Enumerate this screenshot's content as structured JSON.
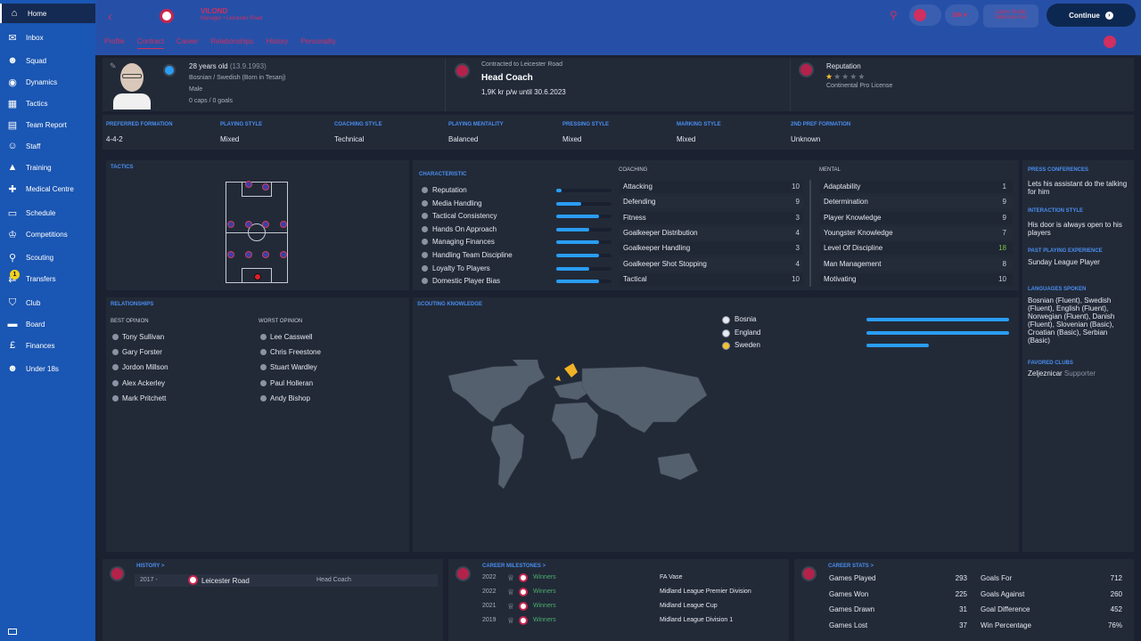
{
  "sidebar": {
    "items": [
      {
        "label": "Home",
        "icon": "home-icon",
        "glyph": "⌂",
        "active": true
      },
      {
        "label": "Inbox",
        "icon": "inbox-icon",
        "glyph": "✉"
      },
      {
        "label": "Squad",
        "icon": "squad-icon",
        "glyph": "☻"
      },
      {
        "label": "Dynamics",
        "icon": "dynamics-icon",
        "glyph": "◉"
      },
      {
        "label": "Tactics",
        "icon": "tactics-icon",
        "glyph": "▦"
      },
      {
        "label": "Team Report",
        "icon": "report-icon",
        "glyph": "▤"
      },
      {
        "label": "Staff",
        "icon": "staff-icon",
        "glyph": "☺"
      },
      {
        "label": "Training",
        "icon": "training-icon",
        "glyph": "▲"
      },
      {
        "label": "Medical Centre",
        "icon": "medical-icon",
        "glyph": "✚"
      },
      {
        "label": "Schedule",
        "icon": "schedule-icon",
        "glyph": "▭"
      },
      {
        "label": "Competitions",
        "icon": "trophy-icon",
        "glyph": "♔"
      },
      {
        "label": "Scouting",
        "icon": "scouting-icon",
        "glyph": "⚲"
      },
      {
        "label": "Transfers",
        "icon": "transfers-icon",
        "glyph": "⇄"
      },
      {
        "label": "Club",
        "icon": "club-icon",
        "glyph": "⛉"
      },
      {
        "label": "Board",
        "icon": "board-icon",
        "glyph": "▬"
      },
      {
        "label": "Finances",
        "icon": "finances-icon",
        "glyph": "£"
      },
      {
        "label": "Under 18s",
        "icon": "under18-icon",
        "glyph": "☻"
      }
    ],
    "transfers_badge": "1"
  },
  "top": {
    "name": "VILOND",
    "subtitle": "Manager • Leicester Road",
    "coins": "Lakov Studio\nWelcome Set",
    "continue": "Continue",
    "menu": [
      "Profile",
      "Contract",
      "Career",
      "Relationships",
      "History",
      "Personality"
    ]
  },
  "profile": {
    "age": "28 years old",
    "dob": "(13.9.1993)",
    "nationality": "Bosnian / Swedish (Born in Tesanj)",
    "gender": "Male",
    "caps": "0 caps / 0 goals"
  },
  "contract": {
    "label": "Contracted to Leicester Road",
    "role": "Head Coach",
    "wage": "1,9K kr p/w until 30.6.2023"
  },
  "reputation": {
    "label": "Reputation",
    "stars_filled": 1,
    "stars_total": 5,
    "license": "Continental Pro License"
  },
  "styles": [
    {
      "label": "Preferred Formation",
      "value": "4-4-2"
    },
    {
      "label": "Playing Style",
      "value": "Mixed"
    },
    {
      "label": "Coaching Style",
      "value": "Technical"
    },
    {
      "label": "Playing Mentality",
      "value": "Balanced"
    },
    {
      "label": "Pressing Style",
      "value": "Mixed"
    },
    {
      "label": "Marking Style",
      "value": "Mixed"
    },
    {
      "label": "2nd Pref Formation",
      "value": "Unknown"
    }
  ],
  "tactics": {
    "label": "Tactics"
  },
  "characteristic": {
    "label": "Characteristic",
    "items": [
      {
        "name": "Reputation",
        "value": 0.1
      },
      {
        "name": "Media Handling",
        "value": 0.45
      },
      {
        "name": "Tactical Consistency",
        "value": 0.78
      },
      {
        "name": "Hands On Approach",
        "value": 0.6
      },
      {
        "name": "Managing Finances",
        "value": 0.78
      },
      {
        "name": "Handling Team Discipline",
        "value": 0.78
      },
      {
        "name": "Loyalty To Players",
        "value": 0.6
      },
      {
        "name": "Domestic Player Bias",
        "value": 0.78
      }
    ]
  },
  "coaching": {
    "label": "Coaching",
    "items": [
      {
        "name": "Attacking",
        "value": "10"
      },
      {
        "name": "Defending",
        "value": "9"
      },
      {
        "name": "Fitness",
        "value": "3"
      },
      {
        "name": "Goalkeeper Distribution",
        "value": "4"
      },
      {
        "name": "Goalkeeper Handling",
        "value": "3"
      },
      {
        "name": "Goalkeeper Shot Stopping",
        "value": "4"
      },
      {
        "name": "Tactical",
        "value": "10"
      }
    ]
  },
  "mental": {
    "label": "Mental",
    "items": [
      {
        "name": "Adaptability",
        "value": "1"
      },
      {
        "name": "Determination",
        "value": "9"
      },
      {
        "name": "Player Knowledge",
        "value": "9"
      },
      {
        "name": "Youngster Knowledge",
        "value": "7"
      },
      {
        "name": "Level Of Discipline",
        "value": "18",
        "highlight": true
      },
      {
        "name": "Man Management",
        "value": "8"
      },
      {
        "name": "Motivating",
        "value": "10"
      }
    ]
  },
  "press": {
    "label": "Press Conferences",
    "value": "Lets his assistant do the talking for him"
  },
  "interaction": {
    "label": "Interaction Style",
    "value": "His door is always open to his players"
  },
  "past": {
    "label": "Past Playing Experience",
    "value": "Sunday League Player"
  },
  "languages": {
    "label": "Languages Spoken",
    "value": "Bosnian (Fluent), Swedish (Fluent), English (Fluent), Norwegian (Fluent), Danish (Fluent), Slovenian (Basic), Croatian (Basic), Serbian (Basic)"
  },
  "favored": {
    "label": "Favored Clubs",
    "club": "Zeljeznicar",
    "relation": "Supporter"
  },
  "relationships": {
    "label": "Relationships",
    "best_label": "Best Opinion",
    "worst_label": "Worst Opinion",
    "best": [
      "Tony Sullivan",
      "Gary Forster",
      "Jordon Millson",
      "Alex Ackerley",
      "Mark Pritchett"
    ],
    "worst": [
      "Lee Casswell",
      "Chris Freestone",
      "Stuart Wardley",
      "Paul Holleran",
      "Andy Bishop"
    ]
  },
  "scouting": {
    "label": "Scouting Knowledge",
    "countries": [
      {
        "name": "Bosnia",
        "value": 1.0
      },
      {
        "name": "England",
        "value": 1.0
      },
      {
        "name": "Sweden",
        "value": 0.44
      }
    ]
  },
  "history": {
    "label": "History >",
    "year": "2017 -",
    "club": "Leicester Road",
    "role": "Head Coach"
  },
  "milestones": {
    "label": "Career Milestones >",
    "items": [
      {
        "year": "2022",
        "result": "Winners",
        "comp": "FA Vase"
      },
      {
        "year": "2022",
        "result": "Winners",
        "comp": "Midland League Premier Division"
      },
      {
        "year": "2021",
        "result": "Winners",
        "comp": "Midland League Cup"
      },
      {
        "year": "2019",
        "result": "Winners",
        "comp": "Midland League Division 1"
      }
    ]
  },
  "stats": {
    "label": "Career Stats >",
    "left": [
      {
        "name": "Games Played",
        "value": "293"
      },
      {
        "name": "Games Won",
        "value": "225"
      },
      {
        "name": "Games Drawn",
        "value": "31"
      },
      {
        "name": "Games Lost",
        "value": "37"
      }
    ],
    "right": [
      {
        "name": "Goals For",
        "value": "712"
      },
      {
        "name": "Goals Against",
        "value": "260"
      },
      {
        "name": "Goal Difference",
        "value": "452"
      },
      {
        "name": "Win Percentage",
        "value": "76%"
      }
    ]
  },
  "colors": {
    "accent": "#4a8ef0",
    "bar": "#2a9df4",
    "sidebar": "#1a56b3",
    "highlight": "#7bc043"
  }
}
